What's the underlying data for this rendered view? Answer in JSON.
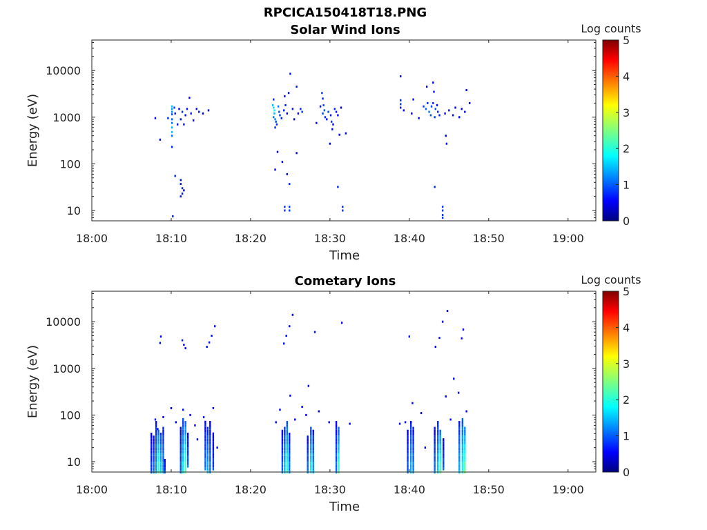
{
  "figure_title": "RPCICA150418T18.PNG",
  "chart_data": [
    {
      "type": "heatmap",
      "title": "Solar Wind Ions",
      "xlabel": "Time",
      "ylabel": "Energy (eV)",
      "x_ticks": [
        "18:00",
        "18:10",
        "18:20",
        "18:30",
        "18:40",
        "18:50",
        "19:00"
      ],
      "y_ticks": [
        "10",
        "100",
        "1000",
        "10000"
      ],
      "xlim_minutes": [
        0,
        63.5
      ],
      "ylim_ev": [
        6,
        45000
      ],
      "y_scale": "log",
      "colorbar": {
        "label": "Log counts",
        "ticks": [
          "0",
          "1",
          "2",
          "3",
          "4",
          "5"
        ],
        "range": [
          0,
          5
        ],
        "colormap": "jet"
      },
      "points": [
        [
          8,
          950,
          0.6
        ],
        [
          8.6,
          330,
          0.7
        ],
        [
          9.6,
          950,
          0.8
        ],
        [
          10.1,
          1700,
          1.6
        ],
        [
          10.1,
          1500,
          1.4
        ],
        [
          10.1,
          1300,
          1.3
        ],
        [
          10.1,
          1150,
          1.0
        ],
        [
          10.1,
          900,
          1.1
        ],
        [
          10.1,
          750,
          1.2
        ],
        [
          10.1,
          600,
          1.5
        ],
        [
          10.1,
          480,
          1.6
        ],
        [
          10.1,
          400,
          1.2
        ],
        [
          10.1,
          230,
          0.8
        ],
        [
          10.4,
          1600,
          0.9
        ],
        [
          10.5,
          1200,
          0.7
        ],
        [
          10.8,
          700,
          0.6
        ],
        [
          11,
          1500,
          0.6
        ],
        [
          11.2,
          900,
          0.7
        ],
        [
          11.4,
          1300,
          0.8
        ],
        [
          11.6,
          700,
          0.7
        ],
        [
          11.8,
          1100,
          0.6
        ],
        [
          12,
          1500,
          0.7
        ],
        [
          12.3,
          2600,
          0.6
        ],
        [
          12.5,
          1200,
          0.7
        ],
        [
          12.8,
          850,
          0.6
        ],
        [
          13.2,
          1500,
          0.6
        ],
        [
          13.5,
          1300,
          0.7
        ],
        [
          14,
          1200,
          0.6
        ],
        [
          14.7,
          1400,
          0.6
        ],
        [
          10.5,
          55,
          0.8
        ],
        [
          11.2,
          45,
          0.7
        ],
        [
          11.2,
          37,
          0.7
        ],
        [
          11.4,
          30,
          0.8
        ],
        [
          11.4,
          23,
          0.7
        ],
        [
          11.6,
          27,
          0.6
        ],
        [
          11.2,
          20,
          0.7
        ],
        [
          10.2,
          7.5,
          0.7
        ],
        [
          22.9,
          2400,
          0.8
        ],
        [
          22.8,
          1800,
          1.6
        ],
        [
          22.9,
          1600,
          1.7
        ],
        [
          23,
          1400,
          1.9
        ],
        [
          23,
          1200,
          1.5
        ],
        [
          22.9,
          1000,
          1.2
        ],
        [
          23.1,
          900,
          1.3
        ],
        [
          23.2,
          800,
          1.0
        ],
        [
          23.3,
          700,
          0.8
        ],
        [
          23.1,
          600,
          0.8
        ],
        [
          23.5,
          1700,
          1.2
        ],
        [
          23.6,
          1300,
          1.0
        ],
        [
          23.7,
          1100,
          0.9
        ],
        [
          23.9,
          950,
          0.7
        ],
        [
          24.2,
          1400,
          0.8
        ],
        [
          24.3,
          2800,
          0.7
        ],
        [
          24.4,
          1800,
          0.8
        ],
        [
          24.6,
          1200,
          0.6
        ],
        [
          24.8,
          3300,
          0.7
        ],
        [
          25,
          8500,
          0.7
        ],
        [
          25.3,
          1500,
          0.7
        ],
        [
          25.5,
          900,
          0.6
        ],
        [
          25.8,
          4500,
          0.7
        ],
        [
          26,
          1200,
          0.6
        ],
        [
          26.3,
          1500,
          0.8
        ],
        [
          26.5,
          1300,
          0.9
        ],
        [
          23.4,
          180,
          0.6
        ],
        [
          23.1,
          75,
          0.6
        ],
        [
          24,
          110,
          0.6
        ],
        [
          24.6,
          60,
          0.7
        ],
        [
          24.9,
          37,
          0.8
        ],
        [
          25.8,
          170,
          0.6
        ],
        [
          24.3,
          12,
          0.9
        ],
        [
          24.3,
          10,
          0.9
        ],
        [
          24.9,
          12,
          0.9
        ],
        [
          24.9,
          10,
          0.9
        ],
        [
          29,
          3300,
          0.9
        ],
        [
          29.1,
          2500,
          0.8
        ],
        [
          29.2,
          1800,
          1.0
        ],
        [
          29.3,
          1400,
          1.1
        ],
        [
          29.1,
          1200,
          0.9
        ],
        [
          29.4,
          1000,
          0.8
        ],
        [
          29.6,
          900,
          0.7
        ],
        [
          29.8,
          1300,
          0.9
        ],
        [
          30.1,
          1100,
          0.7
        ],
        [
          30.2,
          800,
          0.9
        ],
        [
          30.4,
          700,
          0.6
        ],
        [
          30.6,
          1500,
          0.8
        ],
        [
          30.8,
          1300,
          0.7
        ],
        [
          31,
          1100,
          0.6
        ],
        [
          31.4,
          1600,
          0.6
        ],
        [
          30.3,
          550,
          0.6
        ],
        [
          30,
          270,
          0.6
        ],
        [
          31.2,
          420,
          0.6
        ],
        [
          32,
          450,
          0.6
        ],
        [
          28.3,
          750,
          0.6
        ],
        [
          28.8,
          1700,
          0.7
        ],
        [
          31,
          32,
          0.8
        ],
        [
          31.6,
          12,
          0.9
        ],
        [
          31.6,
          10,
          0.9
        ],
        [
          38.9,
          7500,
          0.6
        ],
        [
          38.9,
          2300,
          0.8
        ],
        [
          38.9,
          1900,
          0.9
        ],
        [
          38.9,
          1600,
          0.7
        ],
        [
          39.3,
          1400,
          0.6
        ],
        [
          40.5,
          2400,
          0.6
        ],
        [
          41.8,
          1700,
          0.9
        ],
        [
          42.1,
          1500,
          1.1
        ],
        [
          42.3,
          2000,
          0.8
        ],
        [
          42.5,
          1300,
          1.2
        ],
        [
          42.7,
          1100,
          1.0
        ],
        [
          42.8,
          1700,
          0.9
        ],
        [
          43,
          2000,
          0.8
        ],
        [
          43.1,
          3500,
          0.7
        ],
        [
          43.3,
          1500,
          1.0
        ],
        [
          43.2,
          1000,
          0.9
        ],
        [
          43.5,
          1800,
          0.7
        ],
        [
          43.6,
          1300,
          0.8
        ],
        [
          43.8,
          1100,
          0.7
        ],
        [
          42.2,
          4500,
          0.6
        ],
        [
          43,
          5500,
          0.6
        ],
        [
          40.3,
          1200,
          0.6
        ],
        [
          41.2,
          950,
          0.6
        ],
        [
          44.5,
          1200,
          0.6
        ],
        [
          45,
          1400,
          0.7
        ],
        [
          45.5,
          1100,
          0.7
        ],
        [
          45.8,
          1600,
          0.6
        ],
        [
          46.3,
          1000,
          0.6
        ],
        [
          46.6,
          1500,
          0.6
        ],
        [
          47,
          1300,
          0.6
        ],
        [
          47.2,
          3800,
          0.6
        ],
        [
          47.6,
          2000,
          0.6
        ],
        [
          44.6,
          400,
          0.6
        ],
        [
          44.7,
          270,
          0.6
        ],
        [
          43.2,
          32,
          0.8
        ],
        [
          44.2,
          12,
          0.9
        ],
        [
          44.2,
          10,
          0.9
        ],
        [
          44.2,
          8,
          0.9
        ],
        [
          44.2,
          7,
          0.9
        ]
      ]
    },
    {
      "type": "heatmap",
      "title": "Cometary Ions",
      "xlabel": "Time",
      "ylabel": "Energy (eV)",
      "x_ticks": [
        "18:00",
        "18:10",
        "18:20",
        "18:30",
        "18:40",
        "18:50",
        "19:00"
      ],
      "y_ticks": [
        "10",
        "100",
        "1000",
        "10000"
      ],
      "xlim_minutes": [
        0,
        63.5
      ],
      "ylim_ev": [
        6,
        45000
      ],
      "y_scale": "log",
      "colorbar": {
        "label": "Log counts",
        "ticks": [
          "0",
          "1",
          "2",
          "3",
          "4",
          "5"
        ],
        "range": [
          0,
          5
        ],
        "colormap": "jet"
      },
      "columns": [
        {
          "t": 7.5,
          "emin": 6,
          "emax": 40,
          "c": 0.8
        },
        {
          "t": 7.8,
          "emin": 6,
          "emax": 35,
          "c": 1.0
        },
        {
          "t": 8.1,
          "emin": 6,
          "emax": 80,
          "c": 1.2
        },
        {
          "t": 8.4,
          "emin": 6,
          "emax": 50,
          "c": 1.9
        },
        {
          "t": 8.7,
          "emin": 6,
          "emax": 40,
          "c": 1.5
        },
        {
          "t": 9,
          "emin": 6,
          "emax": 60,
          "c": 1.2
        },
        {
          "t": 9.2,
          "emin": 6,
          "emax": 12,
          "c": 0.8
        },
        {
          "t": 11.2,
          "emin": 6,
          "emax": 60,
          "c": 0.9
        },
        {
          "t": 11.5,
          "emin": 6,
          "emax": 90,
          "c": 1.6
        },
        {
          "t": 11.8,
          "emin": 6,
          "emax": 80,
          "c": 2.0
        },
        {
          "t": 12.1,
          "emin": 8,
          "emax": 40,
          "c": 1.0
        },
        {
          "t": 14.3,
          "emin": 7,
          "emax": 80,
          "c": 1.0
        },
        {
          "t": 14.6,
          "emin": 6,
          "emax": 60,
          "c": 1.3
        },
        {
          "t": 14.9,
          "emin": 6,
          "emax": 80,
          "c": 1.1
        },
        {
          "t": 15.3,
          "emin": 7,
          "emax": 40,
          "c": 0.8
        },
        {
          "t": 24,
          "emin": 6,
          "emax": 45,
          "c": 1.0
        },
        {
          "t": 24.3,
          "emin": 6,
          "emax": 55,
          "c": 1.4
        },
        {
          "t": 24.6,
          "emin": 6,
          "emax": 70,
          "c": 1.8
        },
        {
          "t": 24.9,
          "emin": 6,
          "emax": 40,
          "c": 1.1
        },
        {
          "t": 27.2,
          "emin": 6,
          "emax": 35,
          "c": 1.0
        },
        {
          "t": 27.6,
          "emin": 6,
          "emax": 60,
          "c": 1.6
        },
        {
          "t": 27.9,
          "emin": 6,
          "emax": 45,
          "c": 1.2
        },
        {
          "t": 30.8,
          "emin": 6,
          "emax": 70,
          "c": 1.0
        },
        {
          "t": 31.1,
          "emin": 6,
          "emax": 55,
          "c": 1.9
        },
        {
          "t": 39.8,
          "emin": 6,
          "emax": 50,
          "c": 0.9
        },
        {
          "t": 40.2,
          "emin": 6,
          "emax": 70,
          "c": 1.3
        },
        {
          "t": 40.5,
          "emin": 6,
          "emax": 60,
          "c": 1.1
        },
        {
          "t": 43.2,
          "emin": 6,
          "emax": 60,
          "c": 1.0
        },
        {
          "t": 43.6,
          "emin": 6,
          "emax": 80,
          "c": 1.4
        },
        {
          "t": 43.9,
          "emin": 6,
          "emax": 50,
          "c": 2.0
        },
        {
          "t": 44.3,
          "emin": 7,
          "emax": 30,
          "c": 0.9
        },
        {
          "t": 46.3,
          "emin": 6,
          "emax": 80,
          "c": 1.3
        },
        {
          "t": 46.7,
          "emin": 6,
          "emax": 90,
          "c": 1.7
        },
        {
          "t": 47,
          "emin": 6,
          "emax": 60,
          "c": 2.1
        }
      ],
      "points": [
        [
          7.5,
          35,
          0.6
        ],
        [
          8,
          80,
          0.7
        ],
        [
          8.3,
          50,
          0.7
        ],
        [
          8.7,
          4800,
          0.6
        ],
        [
          8.6,
          3500,
          0.7
        ],
        [
          9,
          90,
          0.6
        ],
        [
          10,
          140,
          0.6
        ],
        [
          10.6,
          70,
          0.6
        ],
        [
          11.4,
          4000,
          0.8
        ],
        [
          11.6,
          3200,
          0.7
        ],
        [
          11.8,
          2700,
          0.6
        ],
        [
          11.5,
          130,
          0.7
        ],
        [
          12.4,
          100,
          0.6
        ],
        [
          13,
          60,
          0.6
        ],
        [
          13.3,
          30,
          0.6
        ],
        [
          14.1,
          90,
          0.7
        ],
        [
          14.5,
          2900,
          0.7
        ],
        [
          14.8,
          3600,
          0.7
        ],
        [
          15.1,
          5000,
          0.7
        ],
        [
          15.5,
          8000,
          0.6
        ],
        [
          15.3,
          140,
          0.6
        ],
        [
          15.8,
          20,
          0.6
        ],
        [
          23.2,
          70,
          0.6
        ],
        [
          23.7,
          130,
          0.6
        ],
        [
          24.2,
          3400,
          0.7
        ],
        [
          24.5,
          5000,
          0.7
        ],
        [
          24.9,
          8000,
          0.6
        ],
        [
          25.3,
          14000,
          0.6
        ],
        [
          25,
          260,
          0.6
        ],
        [
          25.6,
          80,
          0.6
        ],
        [
          26.5,
          150,
          0.6
        ],
        [
          27.3,
          420,
          0.6
        ],
        [
          27,
          100,
          0.6
        ],
        [
          28.1,
          6000,
          0.7
        ],
        [
          28.6,
          120,
          0.6
        ],
        [
          31.5,
          9500,
          0.6
        ],
        [
          32.5,
          65,
          0.6
        ],
        [
          29.9,
          70,
          0.6
        ],
        [
          38.8,
          65,
          0.6
        ],
        [
          39.5,
          70,
          0.6
        ],
        [
          40,
          4800,
          0.7
        ],
        [
          40.4,
          180,
          0.6
        ],
        [
          40.2,
          70,
          0.6
        ],
        [
          41.5,
          110,
          0.6
        ],
        [
          42,
          20,
          0.6
        ],
        [
          43.3,
          2900,
          0.6
        ],
        [
          43.8,
          4500,
          0.7
        ],
        [
          44.2,
          10000,
          0.6
        ],
        [
          44.8,
          17000,
          0.6
        ],
        [
          44.6,
          250,
          0.6
        ],
        [
          45.6,
          600,
          0.6
        ],
        [
          45.2,
          80,
          0.6
        ],
        [
          46.8,
          6800,
          0.6
        ],
        [
          46.6,
          4400,
          0.7
        ],
        [
          46.2,
          300,
          0.6
        ],
        [
          47.2,
          120,
          0.6
        ]
      ]
    }
  ]
}
